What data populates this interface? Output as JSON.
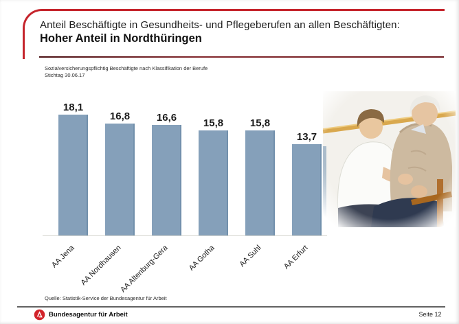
{
  "slide": {
    "title_line1": "Anteil Beschäftigte in Gesundheits- und Pflegeberufen an allen Beschäftigten:",
    "title_line2": "Hoher Anteil in Nordthüringen",
    "subtitle_line1": "Sozialversicherungspflichtig Beschäftigte nach Klassifikation der Berufe",
    "subtitle_line2": "Stichtag 30.06.17",
    "source": "Quelle: Statistik-Service der Bundesagentur für Arbeit",
    "accent_red": "#c5242c"
  },
  "chart_data": {
    "type": "bar",
    "categories": [
      "AA Jena",
      "AA Nordhausen",
      "AA Altenburg-Gera",
      "AA Gotha",
      "AA Suhl",
      "AA Erfurt"
    ],
    "values": [
      18.1,
      16.8,
      16.6,
      15.8,
      15.8,
      13.7
    ],
    "value_labels": [
      "18,1",
      "16,8",
      "16,6",
      "15,8",
      "15,8",
      "13,7"
    ],
    "title": "Anteil Beschäftigte in Gesundheits- und Pflegeberufen an allen Beschäftigten: Hoher Anteil in Nordthüringen",
    "xlabel": "",
    "ylabel": "",
    "ylim": [
      0,
      20
    ],
    "bar_color": "#85a0ba",
    "grid": false,
    "legend": false,
    "data_labels": true
  },
  "photo": {
    "description": "Pflegekraft hält die Hände einer älteren Frau"
  },
  "footer": {
    "brand": "Bundesagentur für Arbeit",
    "page": "Seite 12"
  }
}
